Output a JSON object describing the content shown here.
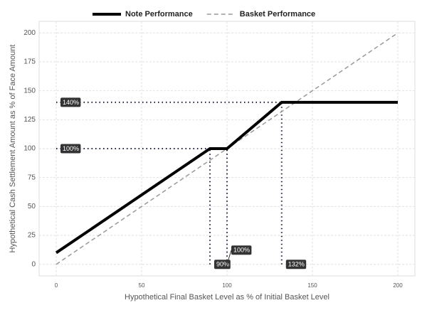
{
  "chart_data": {
    "type": "line",
    "x_label": "Hypothetical Final Basket Level as % of Initial Basket Level",
    "y_label": "Hypothetical Cash Settlement Amount as % of Face Amount",
    "xlim": [
      -10,
      210
    ],
    "ylim": [
      -10,
      210
    ],
    "xticks": [
      0,
      50,
      100,
      150,
      200
    ],
    "yticks": [
      0,
      25,
      50,
      75,
      100,
      125,
      150,
      175,
      200
    ],
    "grid": true,
    "legend": "top",
    "series": [
      {
        "name": "Note Performance",
        "color": "#000000",
        "line_style": "solid",
        "x": [
          0,
          90,
          100,
          132,
          200
        ],
        "values": [
          10,
          100,
          100,
          140,
          140
        ]
      },
      {
        "name": "Basket Performance",
        "color": "#999999",
        "line_style": "dashed",
        "x": [
          0,
          200
        ],
        "values": [
          0,
          200
        ]
      }
    ],
    "reference_lines": [
      {
        "x": [
          0,
          132
        ],
        "y": [
          140,
          140
        ]
      },
      {
        "x": [
          0,
          90
        ],
        "y": [
          100,
          100
        ]
      },
      {
        "x": [
          90,
          90
        ],
        "y": [
          0,
          100
        ]
      },
      {
        "x": [
          100,
          100
        ],
        "y": [
          0,
          100
        ]
      },
      {
        "x": [
          132,
          132
        ],
        "y": [
          0,
          140
        ]
      }
    ],
    "annotations": [
      {
        "text": "140%",
        "x": 0,
        "y": 140
      },
      {
        "text": "100%",
        "x": 0,
        "y": 100
      },
      {
        "text": "90%",
        "x": 90,
        "y": 0
      },
      {
        "text": "100%",
        "x": 100,
        "y": 0
      },
      {
        "text": "132%",
        "x": 132,
        "y": 0
      }
    ]
  }
}
